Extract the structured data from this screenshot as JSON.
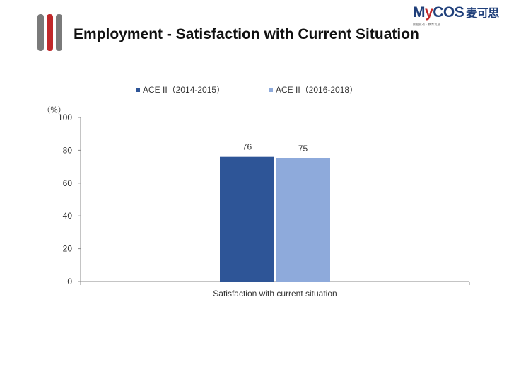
{
  "slide": {
    "title": "Employment - Satisfaction with Current Situation",
    "y_unit": "（％）"
  },
  "logo": {
    "brand_m": "M",
    "brand_y": "y",
    "brand_rest": "COS",
    "brand_cn": "麦可思",
    "tagline": "数据驱动 · 教育发展"
  },
  "colors": {
    "series_1": "#2e5597",
    "series_2": "#8eaadb",
    "accent": "#c0282a"
  },
  "chart_data": {
    "type": "bar",
    "categories": [
      "Satisfaction with current situation"
    ],
    "series": [
      {
        "name": "ACE II（2014-2015）",
        "values": [
          76
        ]
      },
      {
        "name": "ACE II（2016-2018）",
        "values": [
          75
        ]
      }
    ],
    "ylim": [
      0,
      100
    ],
    "yticks": [
      0,
      20,
      40,
      60,
      80,
      100
    ],
    "ylabel": "",
    "xlabel": "",
    "legend": "top-center",
    "grid": false
  }
}
